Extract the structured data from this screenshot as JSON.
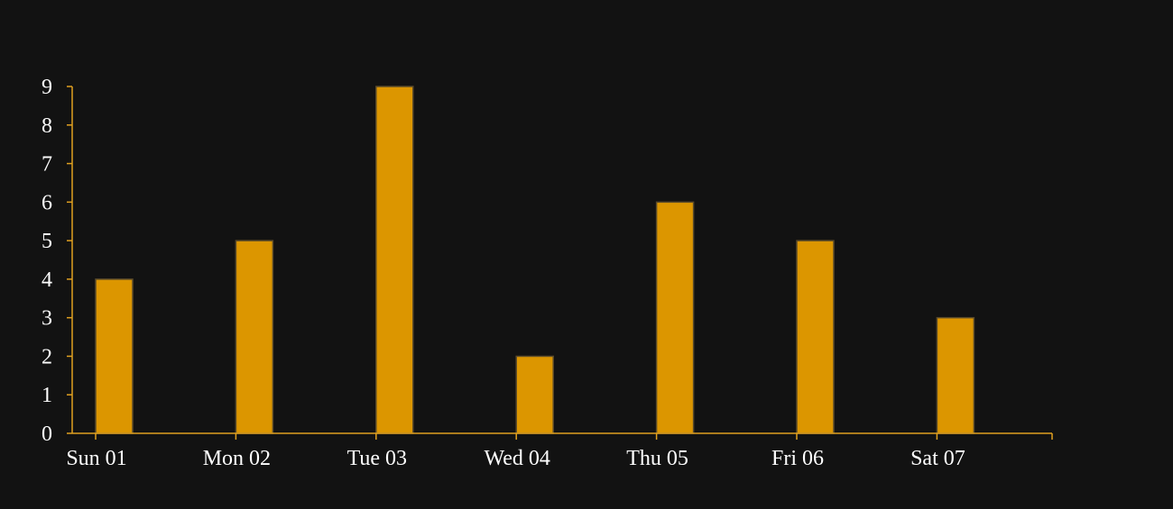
{
  "chart_data": {
    "type": "bar",
    "categories": [
      "Sun 01",
      "Mon 02",
      "Tue 03",
      "Wed 04",
      "Thu 05",
      "Fri 06",
      "Sat 07"
    ],
    "values": [
      4,
      5,
      9,
      2,
      6,
      5,
      3
    ],
    "y_ticks": [
      "0",
      "1",
      "2",
      "3",
      "4",
      "5",
      "6",
      "7",
      "8",
      "9"
    ],
    "ylim": [
      0,
      9
    ],
    "grid": false,
    "colors": {
      "background": "#121212",
      "bar_fill": "#dc9600",
      "bar_stroke": "#5a4a2a",
      "axis": "#e0a020",
      "text": "#ffffff"
    }
  }
}
